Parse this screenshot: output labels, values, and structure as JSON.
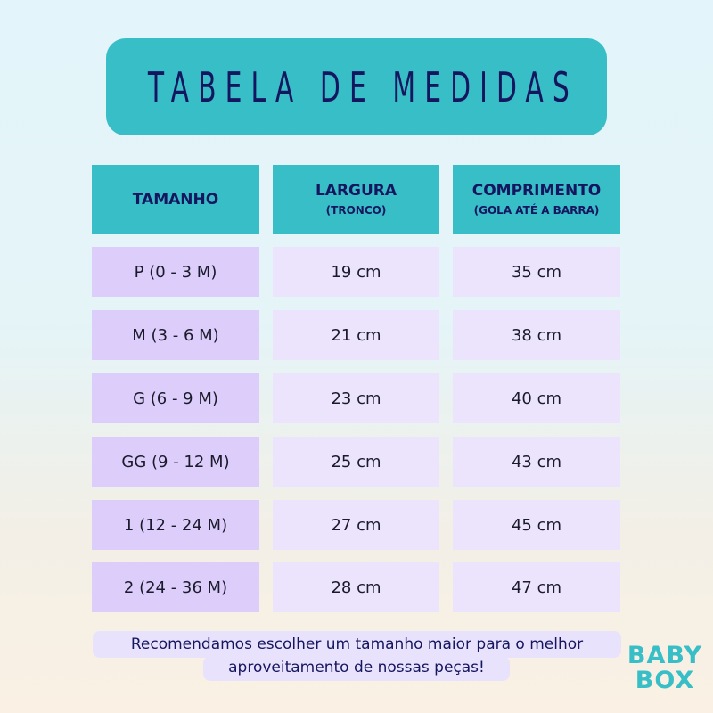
{
  "title": "Tabela de Medidas",
  "headers": [
    {
      "main": "TAMANHO",
      "sub": ""
    },
    {
      "main": "LARGURA",
      "sub": "(TRONCO)"
    },
    {
      "main": "COMPRIMENTO",
      "sub": "(GOLA ATÉ A BARRA)"
    }
  ],
  "rows": [
    [
      "P  (0 - 3 M)",
      "19 cm",
      "35 cm"
    ],
    [
      "M  (3 - 6 M)",
      "21 cm",
      "38 cm"
    ],
    [
      "G  (6 - 9 M)",
      "23 cm",
      "40 cm"
    ],
    [
      "GG  (9 - 12 M)",
      "25 cm",
      "43 cm"
    ],
    [
      "1  (12 - 24 M)",
      "27 cm",
      "45 cm"
    ],
    [
      "2  (24 - 36 M)",
      "28 cm",
      "47 cm"
    ]
  ],
  "note": {
    "line1": "Recomendamos escolher um tamanho maior para o melhor",
    "line2": "aproveitamento de nossas peças!"
  },
  "logo": {
    "line1": "BABY",
    "line2": "BOX"
  },
  "colors": {
    "accent": "#38bec6",
    "text": "#151660",
    "size_cell": "#dccdfb",
    "value_cell": "#ece3fc"
  }
}
